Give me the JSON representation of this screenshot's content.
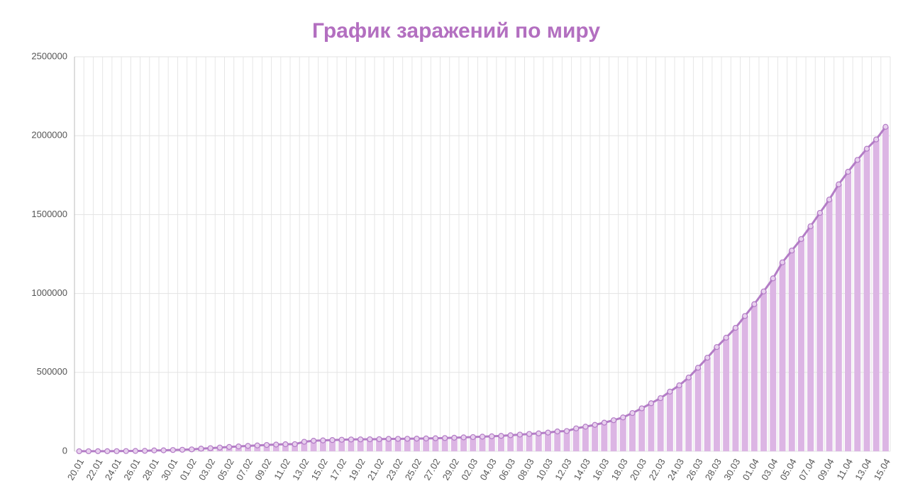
{
  "chart_data": {
    "type": "bar",
    "overlay": "line",
    "title": "График заражений по миру",
    "categories": [
      "20.01",
      null,
      "22.01",
      null,
      "24.01",
      null,
      "26.01",
      null,
      "28.01",
      null,
      "30.01",
      null,
      "01.02",
      null,
      "03.02",
      null,
      "05.02",
      null,
      "07.02",
      null,
      "09.02",
      null,
      "11.02",
      null,
      "13.02",
      null,
      "15.02",
      null,
      "17.02",
      null,
      "19.02",
      null,
      "21.02",
      null,
      "23.02",
      null,
      "25.02",
      null,
      "27.02",
      null,
      "29.02",
      null,
      "02.03",
      null,
      "04.03",
      null,
      "06.03",
      null,
      "08.03",
      null,
      "10.03",
      null,
      "12.03",
      null,
      "14.03",
      null,
      "16.03",
      null,
      "18.03",
      null,
      "20.03",
      null,
      "22.03",
      null,
      "24.03",
      null,
      "26.03",
      null,
      "28.03",
      null,
      "30.03",
      null,
      "01.04",
      null,
      "03.04",
      null,
      "05.04",
      null,
      "07.04",
      null,
      "09.04",
      null,
      "11.04",
      null,
      "13.04",
      null,
      "15.04"
    ],
    "values": [
      282,
      314,
      555,
      654,
      941,
      1434,
      2118,
      2927,
      5578,
      6166,
      8234,
      9927,
      12038,
      16787,
      19881,
      23892,
      27635,
      30794,
      34391,
      37120,
      40150,
      42762,
      44802,
      45221,
      60368,
      66885,
      69030,
      71224,
      73258,
      75136,
      75639,
      76197,
      76819,
      78572,
      78958,
      79561,
      80406,
      81388,
      82746,
      84112,
      86011,
      88369,
      90306,
      92840,
      95120,
      97886,
      101801,
      105847,
      109821,
      113590,
      118620,
      125875,
      128352,
      145205,
      156101,
      167454,
      181574,
      197102,
      214821,
      242570,
      272208,
      304507,
      336953,
      378235,
      418045,
      467653,
      529591,
      593291,
      660706,
      720117,
      782365,
      857487,
      932605,
      1013157,
      1095917,
      1197405,
      1272115,
      1345101,
      1426096,
      1511104,
      1595350,
      1691719,
      1771514,
      1846680,
      1917320,
      1976191,
      2056054
    ],
    "color": "#dcb5e4",
    "line_color": "#b37cc6",
    "ylim": [
      0,
      2500000
    ],
    "yticks": [
      0,
      500000,
      1000000,
      1500000,
      2000000,
      2500000
    ],
    "grid": true
  }
}
